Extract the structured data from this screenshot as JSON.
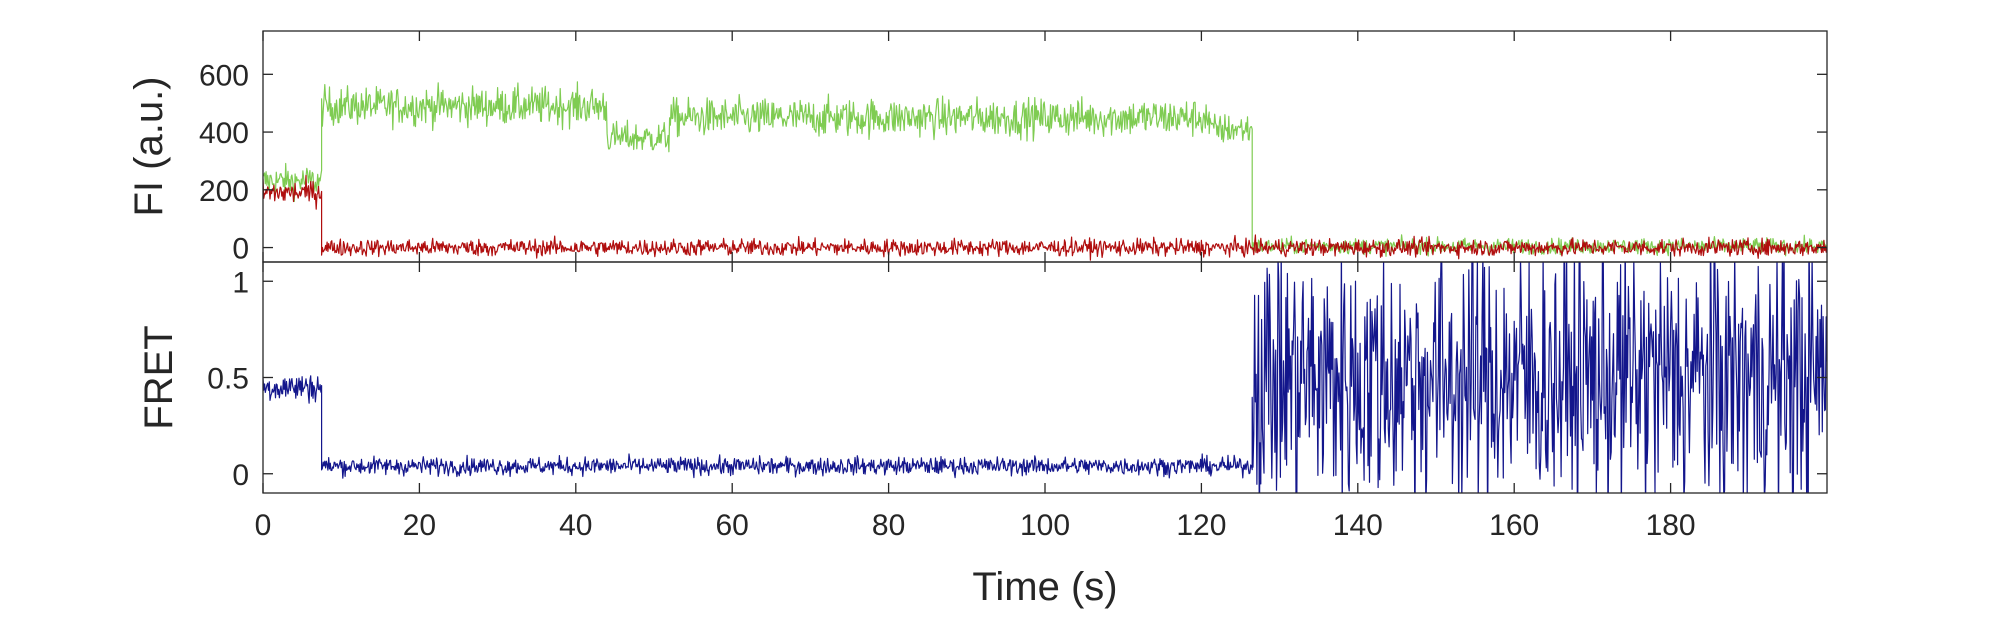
{
  "chart_data": [
    {
      "type": "line",
      "ylabel": "FI (a.u.)",
      "xlim": [
        0,
        200
      ],
      "ylim": [
        -50,
        750
      ],
      "xticks": [
        0,
        20,
        40,
        60,
        80,
        100,
        120,
        140,
        160,
        180
      ],
      "yticks": [
        0,
        200,
        400,
        600
      ],
      "ytick_labels": [
        "0",
        "200",
        "400",
        "600"
      ],
      "grid": false,
      "series": [
        {
          "color": "#7fcc52",
          "segments": [
            {
              "x0": 0,
              "x1": 7.5,
              "level": 230,
              "noise": 70
            },
            {
              "x0": 7.5,
              "x1": 44,
              "level": 490,
              "noise": 85
            },
            {
              "x0": 44,
              "x1": 52,
              "level": 380,
              "noise": 70
            },
            {
              "x0": 52,
              "x1": 121,
              "level": 450,
              "noise": 85
            },
            {
              "x0": 121,
              "x1": 126.5,
              "level": 410,
              "noise": 70
            },
            {
              "x0": 126.5,
              "x1": 200,
              "level": 5,
              "noise": 35
            }
          ]
        },
        {
          "color": "#b00e0e",
          "segments": [
            {
              "x0": 0,
              "x1": 7.5,
              "level": 190,
              "noise": 55
            },
            {
              "x0": 7.5,
              "x1": 200,
              "level": 0,
              "noise": 38
            }
          ]
        }
      ]
    },
    {
      "type": "line",
      "ylabel": "FRET",
      "xlabel": "Time (s)",
      "xlim": [
        0,
        200
      ],
      "ylim": [
        -0.1,
        1.1
      ],
      "xticks": [
        0,
        20,
        40,
        60,
        80,
        100,
        120,
        140,
        160,
        180
      ],
      "xtick_labels": [
        "0",
        "20",
        "40",
        "60",
        "80",
        "100",
        "120",
        "140",
        "160",
        "180"
      ],
      "yticks": [
        0,
        0.5,
        1
      ],
      "ytick_labels": [
        "0",
        "0.5",
        "1"
      ],
      "grid": false,
      "series": [
        {
          "color": "#13168c",
          "segments": [
            {
              "x0": 0,
              "x1": 7.5,
              "level": 0.45,
              "noise": 0.1
            },
            {
              "x0": 7.5,
              "x1": 126.5,
              "level": 0.04,
              "noise": 0.06
            },
            {
              "x0": 126.5,
              "x1": 200,
              "level": 0.5,
              "noise": 0.9
            }
          ]
        }
      ]
    }
  ]
}
